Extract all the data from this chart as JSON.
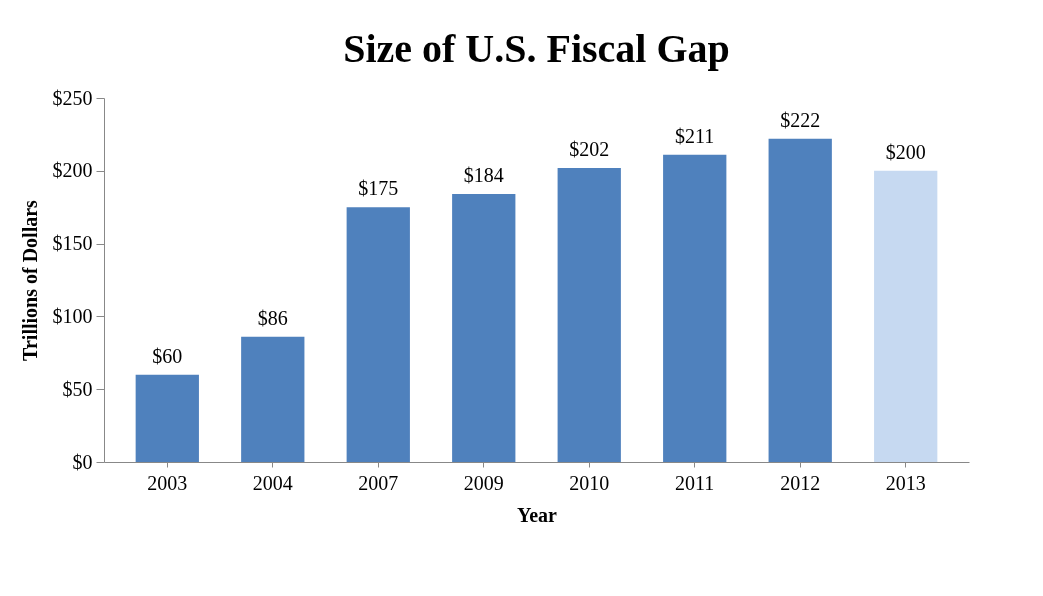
{
  "chart_data": {
    "type": "bar",
    "title": "Size of U.S. Fiscal Gap",
    "xlabel": "Year",
    "ylabel": "Trillions of Dollars",
    "categories": [
      "2003",
      "2004",
      "2007",
      "2009",
      "2010",
      "2011",
      "2012",
      "2013"
    ],
    "values": [
      60,
      86,
      175,
      184,
      202,
      211,
      222,
      200
    ],
    "colors": [
      "#4f81bd",
      "#4f81bd",
      "#4f81bd",
      "#4f81bd",
      "#4f81bd",
      "#4f81bd",
      "#4f81bd",
      "#c6d9f1"
    ],
    "value_labels": [
      "$60",
      "$86",
      "$175",
      "$184",
      "$202",
      "$211",
      "$222",
      "$200"
    ],
    "ylim": [
      0,
      250
    ],
    "yticks": [
      {
        "value": 0,
        "label": "$0"
      },
      {
        "value": 50,
        "label": "$50"
      },
      {
        "value": 100,
        "label": "$100"
      },
      {
        "value": 150,
        "label": "$150"
      },
      {
        "value": 200,
        "label": "$200"
      },
      {
        "value": 250,
        "label": "$250"
      }
    ],
    "grid": false
  }
}
